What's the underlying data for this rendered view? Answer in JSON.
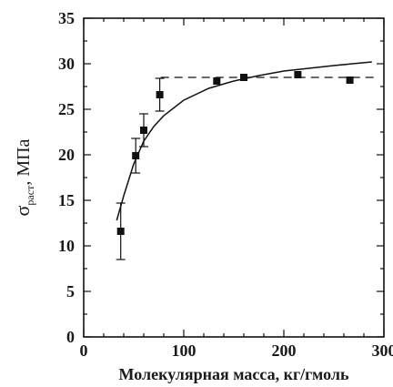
{
  "chart_data": {
    "type": "scatter",
    "title": "",
    "xlabel": "Молекулярная масса, кг/гмоль",
    "ylabel": {
      "symbol": "σ",
      "subscript": "раст",
      "suffix": ", МПа"
    },
    "xlim": [
      0,
      300
    ],
    "ylim": [
      0,
      35
    ],
    "xticks": [
      0,
      100,
      200,
      300
    ],
    "yticks": [
      0,
      5,
      10,
      15,
      20,
      25,
      30,
      35
    ],
    "grid": false,
    "legend": "none",
    "series": [
      {
        "kind": "points-with-error",
        "x": [
          37,
          52,
          60,
          76,
          133,
          160,
          214,
          266
        ],
        "y": [
          11.6,
          19.9,
          22.7,
          26.6,
          28.1,
          28.5,
          28.8,
          28.2
        ],
        "yerr": [
          3.1,
          1.9,
          1.8,
          1.8,
          0,
          0,
          0,
          0
        ]
      },
      {
        "kind": "fit-curve",
        "x": [
          33,
          40,
          50,
          60,
          70,
          80,
          100,
          125,
          150,
          175,
          200,
          250,
          288
        ],
        "y": [
          12.8,
          15.5,
          19.0,
          21.5,
          23.1,
          24.3,
          26.0,
          27.3,
          28.1,
          28.7,
          29.2,
          29.8,
          30.2
        ]
      },
      {
        "kind": "dashed-asymptote",
        "x": [
          77,
          290
        ],
        "y": [
          28.5,
          28.5
        ]
      }
    ]
  }
}
